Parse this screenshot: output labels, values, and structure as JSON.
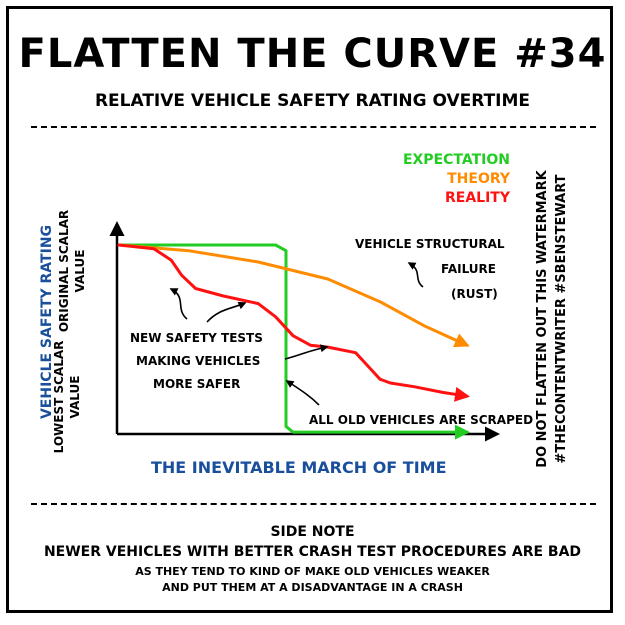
{
  "title": "FLATTEN THE CURVE #34",
  "subtitle": "RELATIVE VEHICLE SAFETY RATING OVERTIME",
  "chart_data": {
    "type": "line",
    "title": "FLATTEN THE CURVE #34",
    "subtitle": "RELATIVE VEHICLE SAFETY RATING OVERTIME",
    "xlabel": "THE INEVITABLE MARCH OF TIME",
    "ylabel": "VEHICLE SAFETY RATING",
    "y_tick_top": "ORIGINAL SCALAR VALUE",
    "y_tick_bottom": "LOWEST SCALAR VALUE",
    "xlim": [
      0,
      100
    ],
    "ylim": [
      0,
      100
    ],
    "grid": false,
    "legend_position": "top-right",
    "series": [
      {
        "name": "EXPECTATION",
        "color": "#22cc22",
        "x": [
          0,
          45,
          46,
          48,
          48,
          50,
          100
        ],
        "y": [
          100,
          100,
          99,
          97,
          4,
          1,
          1
        ]
      },
      {
        "name": "THEORY",
        "color": "#ff8c00",
        "x": [
          0,
          20,
          40,
          60,
          75,
          88,
          100
        ],
        "y": [
          100,
          97,
          91,
          82,
          70,
          57,
          47
        ]
      },
      {
        "name": "REALITY",
        "color": "#ff1111",
        "x": [
          0,
          10,
          15,
          18,
          22,
          30,
          40,
          45,
          50,
          55,
          60,
          68,
          72,
          75,
          78,
          85,
          93,
          100
        ],
        "y": [
          100,
          98,
          92,
          84,
          77,
          73,
          69,
          62,
          52,
          47,
          46,
          43,
          35,
          29,
          27,
          25,
          22,
          20
        ]
      }
    ],
    "annotations": [
      "VEHICLE STRUCTURAL",
      "FAILURE",
      "(RUST)",
      "NEW SAFETY TESTS",
      "MAKING VEHICLES",
      "MORE SAFER",
      "ALL OLD VEHICLES ARE SCRAPED"
    ]
  },
  "watermark": {
    "line1": "DO NOT FLATTEN OUT THIS WATERMARK",
    "line2": "#THECONTENTWRITER #SBENSTEWART"
  },
  "side_note": {
    "heading": "SIDE NOTE",
    "main": "NEWER VEHICLES WITH BETTER CRASH TEST PROCEDURES ARE BAD",
    "detail1": "AS THEY TEND TO KIND OF MAKE OLD VEHICLES WEAKER",
    "detail2": "AND PUT THEM AT A DISADVANTAGE IN A CRASH"
  },
  "colors": {
    "expectation": "#22cc22",
    "theory": "#ff8c00",
    "reality": "#ff1111",
    "axis_label": "#1a4f9c"
  }
}
